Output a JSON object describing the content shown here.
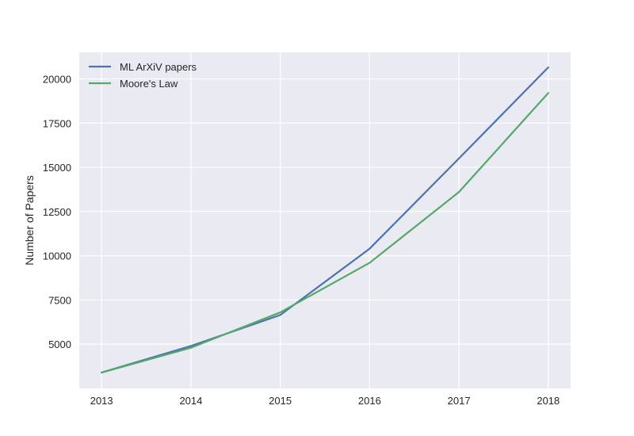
{
  "chart_data": {
    "type": "line",
    "title": "",
    "xlabel": "",
    "ylabel": "Number of Papers",
    "x": [
      2013,
      2014,
      2015,
      2016,
      2017,
      2018
    ],
    "xticks": [
      "2013",
      "2014",
      "2015",
      "2016",
      "2017",
      "2018"
    ],
    "yticks": [
      5000,
      7500,
      10000,
      12500,
      15000,
      17500,
      20000
    ],
    "ytick_labels": [
      "5000",
      "7500",
      "10000",
      "12500",
      "15000",
      "17500",
      "20000"
    ],
    "xlim": [
      2012.75,
      2018.25
    ],
    "ylim": [
      2500,
      21500
    ],
    "grid": true,
    "legend": "upper-left",
    "series": [
      {
        "name": "ML ArXiV papers",
        "color": "#4c72b0",
        "values": [
          3400,
          4900,
          6650,
          10400,
          15500,
          20650
        ]
      },
      {
        "name": "Moore's Law",
        "color": "#55a868",
        "values": [
          3400,
          4800,
          6800,
          9600,
          13600,
          19200
        ]
      }
    ]
  }
}
